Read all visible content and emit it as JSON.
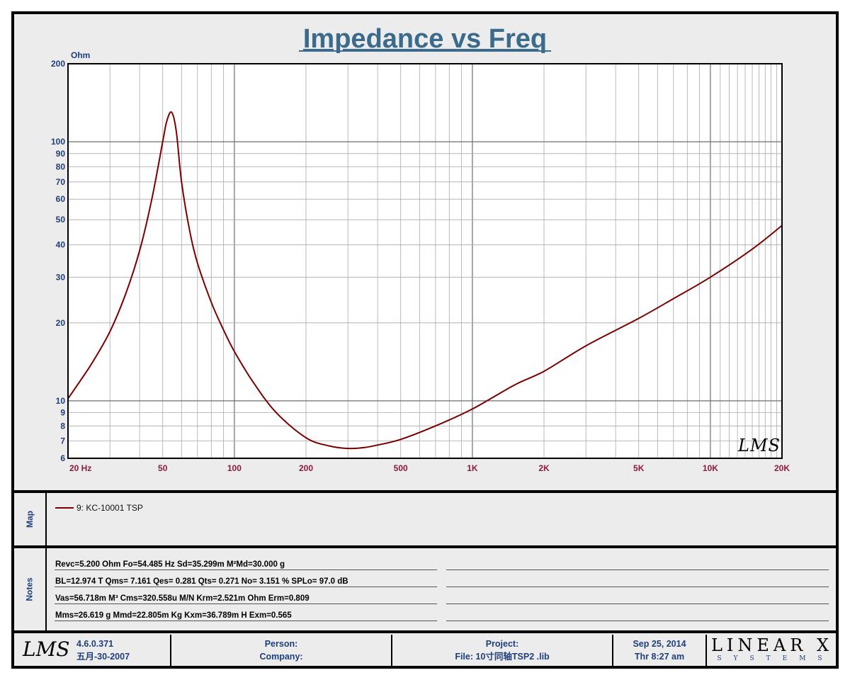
{
  "chart_data": {
    "type": "line",
    "title": "Impedance vs Freq",
    "ylabel": "Ohm",
    "xscale": "log",
    "yscale": "log",
    "xlim": [
      20,
      20000
    ],
    "ylim": [
      6,
      200
    ],
    "grid": true,
    "x_tick_labels": [
      "20  Hz",
      "50",
      "100",
      "200",
      "500",
      "1K",
      "2K",
      "5K",
      "10K",
      "20K"
    ],
    "y_tick_labels": [
      "200",
      "100",
      "90",
      "80",
      "70",
      "60",
      "50",
      "40",
      "30",
      "20",
      "10",
      "9",
      "8",
      "7",
      "6"
    ],
    "series": [
      {
        "name": "9: KC-10001 TSP",
        "color": "#7a0000",
        "x": [
          20,
          25,
          30,
          35,
          40,
          45,
          50,
          52,
          54.485,
          57,
          60,
          65,
          70,
          80,
          90,
          100,
          120,
          150,
          200,
          250,
          300,
          350,
          400,
          500,
          700,
          1000,
          1500,
          2000,
          3000,
          5000,
          7000,
          10000,
          15000,
          20000
        ],
        "y": [
          10.2,
          13.8,
          18.5,
          26,
          38,
          60,
          100,
          120,
          130,
          110,
          70,
          45,
          34,
          24,
          18.8,
          15.5,
          11.8,
          9.0,
          7.2,
          6.7,
          6.55,
          6.6,
          6.75,
          7.1,
          8.0,
          9.3,
          11.5,
          13.0,
          16.3,
          20.8,
          24.8,
          30.0,
          38.5,
          47.5
        ]
      }
    ]
  },
  "legend": {
    "side_label": "Map",
    "entry": "9: KC-10001 TSP"
  },
  "notes": {
    "side_label": "Notes",
    "lines": [
      "Revc=5.200 Ohm  Fo=54.485 Hz  Sd=35.299m M²Md=30.000 g",
      "BL=12.974 T      Qms= 7.161  Qes= 0.281  Qts= 0.271  No= 3.151 %  SPLo= 97.0 dB",
      "Vas=56.718m M³ Cms=320.558u M/N  Krm=2.521m Ohm  Erm=0.809",
      "Mms=26.619 g  Mmd=22.805m Kg  Kxm=36.789m H  Exm=0.565"
    ]
  },
  "watermark": "LMS",
  "footer": {
    "logo": "LMS",
    "version": "4.6.0.371",
    "build_date": "五月-30-2007",
    "person_label": "Person:",
    "company_label": "Company:",
    "project_label": "Project:",
    "file_label": "File: 10寸同轴TSP2 .lib",
    "date": "Sep 25, 2014",
    "time": "Thr  8:27 am",
    "brand": "LINEAR X",
    "brand_sub": "SYSTEMS"
  },
  "colors": {
    "title": "#3a6a8c",
    "axis_labels": "#1f3f7a",
    "x_tick_labels": "#8b1a3c",
    "curve": "#7a0000",
    "panel_bg": "#ececec"
  }
}
